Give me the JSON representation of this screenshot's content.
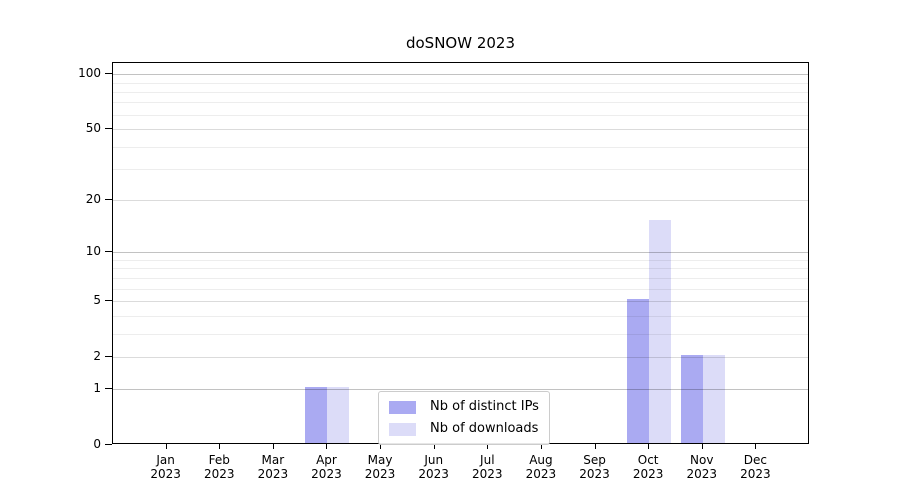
{
  "chart_data": {
    "type": "bar",
    "title": "doSNOW 2023",
    "categories": [
      {
        "month": "Jan",
        "year": "2023"
      },
      {
        "month": "Feb",
        "year": "2023"
      },
      {
        "month": "Mar",
        "year": "2023"
      },
      {
        "month": "Apr",
        "year": "2023"
      },
      {
        "month": "May",
        "year": "2023"
      },
      {
        "month": "Jun",
        "year": "2023"
      },
      {
        "month": "Jul",
        "year": "2023"
      },
      {
        "month": "Aug",
        "year": "2023"
      },
      {
        "month": "Sep",
        "year": "2023"
      },
      {
        "month": "Oct",
        "year": "2023"
      },
      {
        "month": "Nov",
        "year": "2023"
      },
      {
        "month": "Dec",
        "year": "2023"
      }
    ],
    "series": [
      {
        "name": "Nb of distinct IPs",
        "color": "#aaaaf2",
        "values": [
          0,
          0,
          0,
          1,
          0,
          0,
          0,
          0,
          0,
          5,
          2,
          0
        ]
      },
      {
        "name": "Nb of downloads",
        "color": "#dcdcf8",
        "values": [
          0,
          0,
          0,
          1,
          0,
          0,
          0,
          0,
          0,
          15,
          2,
          0
        ]
      }
    ],
    "xlabel": "",
    "ylabel": "",
    "y_axis": {
      "scale": "log1p",
      "ylim": [
        0,
        115
      ],
      "ticks": [
        0,
        1,
        2,
        5,
        10,
        20,
        50,
        100
      ],
      "major_gridlines": [
        1,
        10,
        100
      ],
      "mid_gridlines": [
        2,
        5,
        20,
        50
      ],
      "minor_gridlines": [
        3,
        4,
        6,
        7,
        8,
        9,
        30,
        40,
        60,
        70,
        80,
        90
      ],
      "grid": "horizontal-only, drawn over bars"
    },
    "legend_position": "lower center"
  },
  "colors": {
    "background": "#ffffff",
    "spine": "#000000",
    "grid_major": "rgba(0,0,0,0.24)",
    "grid_mid": "rgba(0,0,0,0.14)",
    "grid_minor": "rgba(0,0,0,0.07)",
    "legend_border": "#cccccc"
  }
}
